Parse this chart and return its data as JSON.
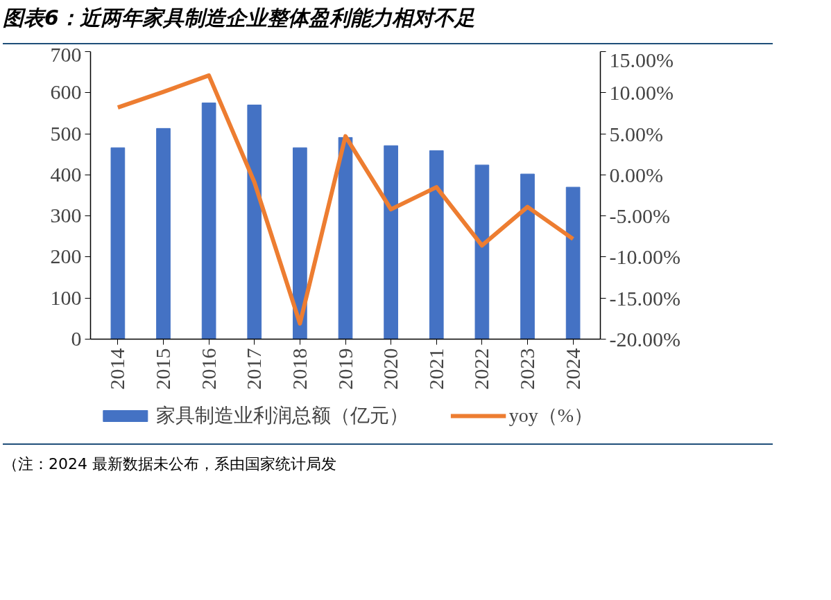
{
  "chart_data": {
    "type": "bar",
    "title": "图表6：近两年家具制造企业整体盈利能力相对不足",
    "categories": [
      "2014",
      "2015",
      "2016",
      "2017",
      "2018",
      "2019",
      "2020",
      "2021",
      "2022",
      "2023",
      "2024"
    ],
    "series": [
      {
        "name": "家具制造业利润总额（亿元）",
        "color": "#4472c4",
        "values": [
          466,
          513,
          575,
          570,
          466,
          491,
          471,
          459,
          424,
          402,
          370
        ]
      },
      {
        "name": "yoy（%）",
        "type": "line",
        "axis": "y2",
        "color": "#ed7d31",
        "values": [
          8.2,
          10.1,
          12.1,
          -0.9,
          -18.1,
          4.7,
          -4.2,
          -1.5,
          -8.6,
          -3.9,
          -7.8
        ]
      }
    ],
    "ylim": [
      0,
      700
    ],
    "yticks": [
      0,
      100,
      200,
      300,
      400,
      500,
      600,
      700
    ],
    "y2lim": [
      -20,
      15
    ],
    "y2ticks": [
      {
        "value": -20,
        "label": "-20.00%"
      },
      {
        "value": -15,
        "label": "-15.00%"
      },
      {
        "value": -10,
        "label": "-10.00%"
      },
      {
        "value": -5,
        "label": "-5.00%"
      },
      {
        "value": 0,
        "label": "0.00%"
      },
      {
        "value": 5,
        "label": "5.00%"
      },
      {
        "value": 10,
        "label": "10.00%"
      },
      {
        "value": 15,
        "label": "15.00%"
      }
    ],
    "grid": false,
    "legend": "bottom",
    "marker": "none",
    "line_style": "solid",
    "annotations": [
      "（注：2024 最新数据未公布，系由国家统计局发"
    ]
  }
}
